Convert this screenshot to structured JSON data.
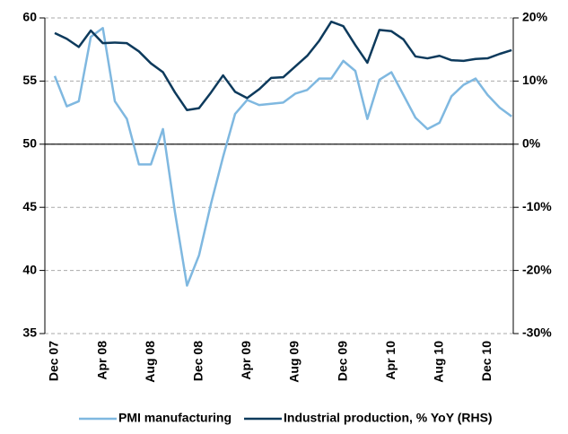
{
  "chart_data": {
    "type": "line",
    "categories": [
      "Dec 07",
      null,
      null,
      null,
      "Apr 08",
      null,
      null,
      null,
      "Aug 08",
      null,
      null,
      null,
      "Dec 08",
      null,
      null,
      null,
      "Apr 09",
      null,
      null,
      null,
      "Aug 09",
      null,
      null,
      null,
      "Dec 09",
      null,
      null,
      null,
      "Apr 10",
      null,
      null,
      null,
      "Aug 10",
      null,
      null,
      null,
      "Dec 10",
      null,
      null
    ],
    "series": [
      {
        "name": "PMI manufacturing",
        "color": "#7fb8e0",
        "values": [
          55.4,
          53.0,
          53.4,
          58.5,
          59.2,
          53.4,
          52.0,
          48.4,
          48.4,
          51.2,
          44.6,
          38.8,
          41.2,
          45.3,
          49.0,
          52.4,
          53.5,
          53.1,
          53.2,
          53.3,
          54.0,
          54.3,
          55.2,
          55.2,
          56.6,
          55.8,
          52.0,
          55.1,
          55.7,
          53.9,
          52.1,
          51.2,
          51.7,
          53.8,
          54.7,
          55.2,
          53.9,
          52.9,
          52.2
        ]
      },
      {
        "name": "Industrial production, % YoY (RHS)",
        "color": "#0d3a5c",
        "axis": "y2",
        "values": [
          17.6,
          16.7,
          15.4,
          18.0,
          16.0,
          16.1,
          16.0,
          14.7,
          12.8,
          11.4,
          8.2,
          5.4,
          5.7,
          8.2,
          10.9,
          8.3,
          7.3,
          8.7,
          10.5,
          10.6,
          12.3,
          14.0,
          16.4,
          19.4,
          18.7,
          15.7,
          12.9,
          18.1,
          17.9,
          16.6,
          13.9,
          13.6,
          14.0,
          13.3,
          13.2,
          13.5,
          13.6,
          14.3,
          14.9
        ]
      }
    ],
    "ylim": [
      35,
      60
    ],
    "yticks": [
      35,
      40,
      45,
      50,
      55,
      60
    ],
    "y2lim": [
      -30,
      20
    ],
    "y2ticks": [
      {
        "value": -30,
        "label": "-30%"
      },
      {
        "value": -20,
        "label": "-20%"
      },
      {
        "value": -10,
        "label": "-10%"
      },
      {
        "value": 0,
        "label": "0%"
      },
      {
        "value": 10,
        "label": "10%"
      },
      {
        "value": 20,
        "label": "20%"
      }
    ],
    "grid": true,
    "legend": "bottom"
  }
}
